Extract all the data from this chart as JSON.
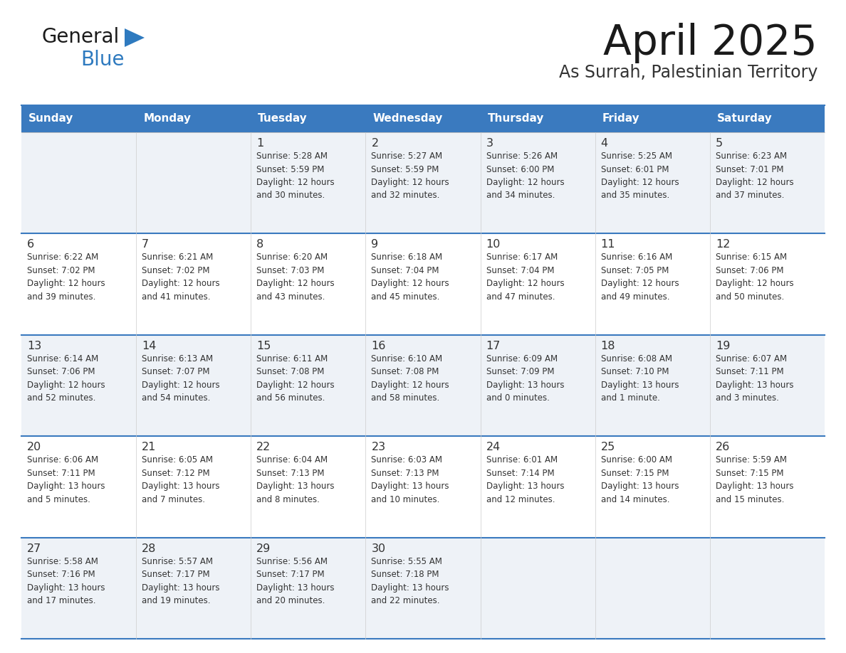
{
  "title": "April 2025",
  "subtitle": "As Surrah, Palestinian Territory",
  "header_bg_color": "#3a7abf",
  "header_text_color": "#ffffff",
  "cell_bg_color_odd": "#eef2f7",
  "cell_bg_color_even": "#ffffff",
  "border_color": "#3a7abf",
  "text_color": "#333333",
  "day_headers": [
    "Sunday",
    "Monday",
    "Tuesday",
    "Wednesday",
    "Thursday",
    "Friday",
    "Saturday"
  ],
  "weeks": [
    [
      {
        "day": "",
        "info": ""
      },
      {
        "day": "",
        "info": ""
      },
      {
        "day": "1",
        "info": "Sunrise: 5:28 AM\nSunset: 5:59 PM\nDaylight: 12 hours\nand 30 minutes."
      },
      {
        "day": "2",
        "info": "Sunrise: 5:27 AM\nSunset: 5:59 PM\nDaylight: 12 hours\nand 32 minutes."
      },
      {
        "day": "3",
        "info": "Sunrise: 5:26 AM\nSunset: 6:00 PM\nDaylight: 12 hours\nand 34 minutes."
      },
      {
        "day": "4",
        "info": "Sunrise: 5:25 AM\nSunset: 6:01 PM\nDaylight: 12 hours\nand 35 minutes."
      },
      {
        "day": "5",
        "info": "Sunrise: 6:23 AM\nSunset: 7:01 PM\nDaylight: 12 hours\nand 37 minutes."
      }
    ],
    [
      {
        "day": "6",
        "info": "Sunrise: 6:22 AM\nSunset: 7:02 PM\nDaylight: 12 hours\nand 39 minutes."
      },
      {
        "day": "7",
        "info": "Sunrise: 6:21 AM\nSunset: 7:02 PM\nDaylight: 12 hours\nand 41 minutes."
      },
      {
        "day": "8",
        "info": "Sunrise: 6:20 AM\nSunset: 7:03 PM\nDaylight: 12 hours\nand 43 minutes."
      },
      {
        "day": "9",
        "info": "Sunrise: 6:18 AM\nSunset: 7:04 PM\nDaylight: 12 hours\nand 45 minutes."
      },
      {
        "day": "10",
        "info": "Sunrise: 6:17 AM\nSunset: 7:04 PM\nDaylight: 12 hours\nand 47 minutes."
      },
      {
        "day": "11",
        "info": "Sunrise: 6:16 AM\nSunset: 7:05 PM\nDaylight: 12 hours\nand 49 minutes."
      },
      {
        "day": "12",
        "info": "Sunrise: 6:15 AM\nSunset: 7:06 PM\nDaylight: 12 hours\nand 50 minutes."
      }
    ],
    [
      {
        "day": "13",
        "info": "Sunrise: 6:14 AM\nSunset: 7:06 PM\nDaylight: 12 hours\nand 52 minutes."
      },
      {
        "day": "14",
        "info": "Sunrise: 6:13 AM\nSunset: 7:07 PM\nDaylight: 12 hours\nand 54 minutes."
      },
      {
        "day": "15",
        "info": "Sunrise: 6:11 AM\nSunset: 7:08 PM\nDaylight: 12 hours\nand 56 minutes."
      },
      {
        "day": "16",
        "info": "Sunrise: 6:10 AM\nSunset: 7:08 PM\nDaylight: 12 hours\nand 58 minutes."
      },
      {
        "day": "17",
        "info": "Sunrise: 6:09 AM\nSunset: 7:09 PM\nDaylight: 13 hours\nand 0 minutes."
      },
      {
        "day": "18",
        "info": "Sunrise: 6:08 AM\nSunset: 7:10 PM\nDaylight: 13 hours\nand 1 minute."
      },
      {
        "day": "19",
        "info": "Sunrise: 6:07 AM\nSunset: 7:11 PM\nDaylight: 13 hours\nand 3 minutes."
      }
    ],
    [
      {
        "day": "20",
        "info": "Sunrise: 6:06 AM\nSunset: 7:11 PM\nDaylight: 13 hours\nand 5 minutes."
      },
      {
        "day": "21",
        "info": "Sunrise: 6:05 AM\nSunset: 7:12 PM\nDaylight: 13 hours\nand 7 minutes."
      },
      {
        "day": "22",
        "info": "Sunrise: 6:04 AM\nSunset: 7:13 PM\nDaylight: 13 hours\nand 8 minutes."
      },
      {
        "day": "23",
        "info": "Sunrise: 6:03 AM\nSunset: 7:13 PM\nDaylight: 13 hours\nand 10 minutes."
      },
      {
        "day": "24",
        "info": "Sunrise: 6:01 AM\nSunset: 7:14 PM\nDaylight: 13 hours\nand 12 minutes."
      },
      {
        "day": "25",
        "info": "Sunrise: 6:00 AM\nSunset: 7:15 PM\nDaylight: 13 hours\nand 14 minutes."
      },
      {
        "day": "26",
        "info": "Sunrise: 5:59 AM\nSunset: 7:15 PM\nDaylight: 13 hours\nand 15 minutes."
      }
    ],
    [
      {
        "day": "27",
        "info": "Sunrise: 5:58 AM\nSunset: 7:16 PM\nDaylight: 13 hours\nand 17 minutes."
      },
      {
        "day": "28",
        "info": "Sunrise: 5:57 AM\nSunset: 7:17 PM\nDaylight: 13 hours\nand 19 minutes."
      },
      {
        "day": "29",
        "info": "Sunrise: 5:56 AM\nSunset: 7:17 PM\nDaylight: 13 hours\nand 20 minutes."
      },
      {
        "day": "30",
        "info": "Sunrise: 5:55 AM\nSunset: 7:18 PM\nDaylight: 13 hours\nand 22 minutes."
      },
      {
        "day": "",
        "info": ""
      },
      {
        "day": "",
        "info": ""
      },
      {
        "day": "",
        "info": ""
      }
    ]
  ],
  "logo_general_color": "#1a1a1a",
  "logo_blue_color": "#2e7abf",
  "logo_triangle_color": "#2e7abf",
  "title_color": "#1a1a1a",
  "subtitle_color": "#333333"
}
